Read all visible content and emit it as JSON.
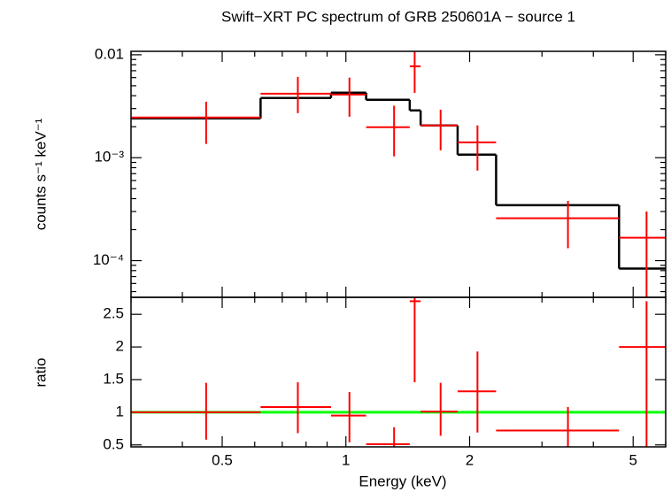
{
  "chart_data": [
    {
      "type": "errorbar",
      "title": "Swift−XRT PC spectrum of GRB 250601A − source 1",
      "ylabel": "counts s⁻¹ keV⁻¹",
      "xscale": "log",
      "yscale": "log",
      "xlim": [
        0.3,
        6
      ],
      "ylim": [
        4.4e-05,
        0.0108
      ],
      "yticks": [
        {
          "value": 0.01,
          "label": "0.01"
        },
        {
          "value": 0.001,
          "label": "10⁻³"
        },
        {
          "value": 0.0001,
          "label": "10⁻⁴"
        }
      ],
      "minor_yticks": [
        5e-05,
        6e-05,
        7e-05,
        8e-05,
        9e-05,
        0.0002,
        0.0003,
        0.0004,
        0.0005,
        0.0006,
        0.0007,
        0.0008,
        0.0009,
        0.002,
        0.003,
        0.004,
        0.005,
        0.006,
        0.007,
        0.008,
        0.009
      ],
      "data": {
        "color": "#ff0000",
        "x": [
          0.457,
          0.764,
          1.02,
          1.31,
          1.47,
          1.7,
          2.09,
          3.47,
          5.39
        ],
        "x_low": [
          0.3,
          0.62,
          0.92,
          1.12,
          1.43,
          1.52,
          1.87,
          2.32,
          4.62
        ],
        "x_high": [
          0.62,
          0.92,
          1.12,
          1.43,
          1.52,
          1.87,
          2.32,
          4.62,
          6
        ],
        "values": [
          0.00246,
          0.00419,
          0.0041,
          0.00198,
          0.00773,
          0.00206,
          0.00141,
          0.000258,
          0.000167
        ],
        "y_low": [
          0.00136,
          0.00271,
          0.0025,
          0.00103,
          0.00427,
          0.00118,
          0.00075,
          0.000132,
          3e-05
        ],
        "y_high": [
          0.0035,
          0.0061,
          0.006,
          0.0032,
          0.0115,
          0.00293,
          0.00206,
          0.00038,
          0.0003
        ]
      },
      "model": {
        "color": "#000000",
        "bins": [
          0.3,
          0.62,
          0.92,
          1.12,
          1.43,
          1.52,
          1.87,
          2.32,
          4.62,
          6
        ],
        "values": [
          0.00241,
          0.0038,
          0.00428,
          0.00365,
          0.00288,
          0.00206,
          0.00107,
          0.000346,
          8.37e-05
        ]
      }
    },
    {
      "type": "errorbar",
      "xlabel": "Energy (keV)",
      "ylabel": "ratio",
      "xscale": "log",
      "xlim": [
        0.3,
        6
      ],
      "ylim": [
        0.47,
        2.76
      ],
      "xticks": [
        0.5,
        1,
        2,
        5
      ],
      "minor_xticks": [
        0.3,
        0.4,
        0.6,
        0.7,
        0.8,
        0.9,
        3,
        4,
        6
      ],
      "yticks": [
        0.5,
        1,
        1.5,
        2,
        2.5
      ],
      "data": {
        "color": "#ff0000",
        "x": [
          0.457,
          0.764,
          1.02,
          1.31,
          1.47,
          1.7,
          2.09,
          3.47,
          5.39
        ],
        "x_low": [
          0.3,
          0.62,
          0.92,
          1.12,
          1.43,
          1.52,
          1.87,
          2.32,
          4.62
        ],
        "x_high": [
          0.62,
          0.92,
          1.12,
          1.43,
          1.52,
          1.87,
          2.32,
          4.62,
          6
        ],
        "values": [
          1.0,
          1.08,
          0.95,
          0.51,
          2.7,
          1.01,
          1.32,
          0.72,
          2.0
        ],
        "y_low": [
          0.58,
          0.68,
          0.54,
          0.3,
          1.46,
          0.64,
          0.69,
          0.45,
          0.3
        ],
        "y_high": [
          1.45,
          1.46,
          1.31,
          0.77,
          3.0,
          1.45,
          1.93,
          1.08,
          2.7
        ]
      },
      "reference": {
        "value": 1,
        "color": "#00ff00"
      }
    }
  ]
}
